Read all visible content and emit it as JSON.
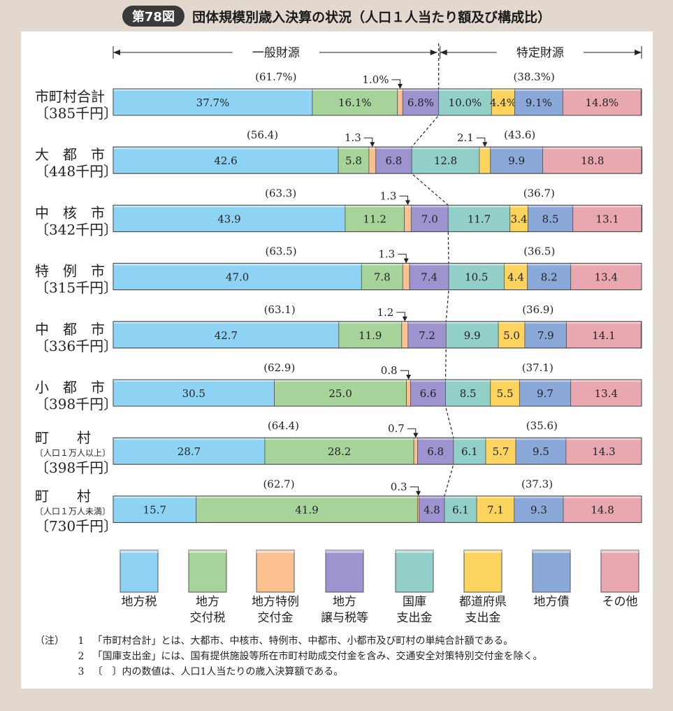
{
  "header": {
    "badge": "第78図",
    "title": "団体規模別歳入決算の状況（人口１人当たり額及び構成比）"
  },
  "chart_data": {
    "type": "bar",
    "orientation": "horizontal",
    "stacked": true,
    "groups": [
      {
        "label": "一般財源",
        "categories": [
          "地方税",
          "地方交付税",
          "地方特例交付金",
          "地方譲与税等"
        ]
      },
      {
        "label": "特定財源",
        "categories": [
          "国庫支出金",
          "都道府県支出金",
          "地方債",
          "その他"
        ]
      }
    ],
    "series": [
      {
        "name": "地方税",
        "legend_lines": [
          "地方税"
        ],
        "color": "#8fd3f4"
      },
      {
        "name": "地方交付税",
        "legend_lines": [
          "地方",
          "交付税"
        ],
        "color": "#a6d39a"
      },
      {
        "name": "地方特例交付金",
        "legend_lines": [
          "地方特例",
          "交付金"
        ],
        "color": "#fbc08f"
      },
      {
        "name": "地方譲与税等",
        "legend_lines": [
          "地方",
          "譲与税等"
        ],
        "color": "#9c93cf"
      },
      {
        "name": "国庫支出金",
        "legend_lines": [
          "国庫",
          "支出金"
        ],
        "color": "#92cfc9"
      },
      {
        "name": "都道府県支出金",
        "legend_lines": [
          "都道府県",
          "支出金"
        ],
        "color": "#fcd35c"
      },
      {
        "name": "地方債",
        "legend_lines": [
          "地方債"
        ],
        "color": "#8aa8d8"
      },
      {
        "name": "その他",
        "legend_lines": [
          "その他"
        ],
        "color": "#e9a8b0"
      }
    ],
    "rows": [
      {
        "label_lines": [
          "市町村合計",
          "〔385千円〕"
        ],
        "values": [
          37.7,
          16.1,
          1.0,
          6.8,
          10.0,
          4.4,
          9.1,
          14.8
        ],
        "value_labels": [
          "37.7%",
          "16.1%",
          "",
          "6.8%",
          "10.0%",
          "4.4%",
          "9.1%",
          "14.8%"
        ],
        "general_total": "(61.7%)",
        "specific_total": "(38.3%)",
        "callouts": [
          {
            "series": 2,
            "text": "1.0%"
          }
        ]
      },
      {
        "label_lines": [
          "大　都　市",
          "〔448千円〕"
        ],
        "values": [
          42.6,
          5.8,
          1.3,
          6.8,
          12.8,
          2.1,
          9.9,
          18.8
        ],
        "value_labels": [
          "42.6",
          "5.8",
          "",
          "6.8",
          "12.8",
          "",
          "9.9",
          "18.8"
        ],
        "general_total": "(56.4)",
        "specific_total": "(43.6)",
        "callouts": [
          {
            "series": 2,
            "text": "1.3"
          },
          {
            "series": 5,
            "text": "2.1"
          }
        ]
      },
      {
        "label_lines": [
          "中　核　市",
          "〔342千円〕"
        ],
        "values": [
          43.9,
          11.2,
          1.3,
          7.0,
          11.7,
          3.4,
          8.5,
          13.1
        ],
        "value_labels": [
          "43.9",
          "11.2",
          "",
          "7.0",
          "11.7",
          "3.4",
          "8.5",
          "13.1"
        ],
        "general_total": "(63.3)",
        "specific_total": "(36.7)",
        "callouts": [
          {
            "series": 2,
            "text": "1.3"
          }
        ]
      },
      {
        "label_lines": [
          "特　例　市",
          "〔315千円〕"
        ],
        "values": [
          47.0,
          7.8,
          1.3,
          7.4,
          10.5,
          4.4,
          8.2,
          13.4
        ],
        "value_labels": [
          "47.0",
          "7.8",
          "",
          "7.4",
          "10.5",
          "4.4",
          "8.2",
          "13.4"
        ],
        "general_total": "(63.5)",
        "specific_total": "(36.5)",
        "callouts": [
          {
            "series": 2,
            "text": "1.3"
          }
        ]
      },
      {
        "label_lines": [
          "中　都　市",
          "〔336千円〕"
        ],
        "values": [
          42.7,
          11.9,
          1.2,
          7.2,
          9.9,
          5.0,
          7.9,
          14.1
        ],
        "value_labels": [
          "42.7",
          "11.9",
          "",
          "7.2",
          "9.9",
          "5.0",
          "7.9",
          "14.1"
        ],
        "general_total": "(63.1)",
        "specific_total": "(36.9)",
        "callouts": [
          {
            "series": 2,
            "text": "1.2"
          }
        ]
      },
      {
        "label_lines": [
          "小　都　市",
          "〔398千円〕"
        ],
        "values": [
          30.5,
          25.0,
          0.8,
          6.6,
          8.5,
          5.5,
          9.7,
          13.4
        ],
        "value_labels": [
          "30.5",
          "25.0",
          "",
          "6.6",
          "8.5",
          "5.5",
          "9.7",
          "13.4"
        ],
        "general_total": "(62.9)",
        "specific_total": "(37.1)",
        "callouts": [
          {
            "series": 2,
            "text": "0.8"
          }
        ]
      },
      {
        "label_lines": [
          "町　　村",
          "〔人口１万人以上〕",
          "〔398千円〕"
        ],
        "values": [
          28.7,
          28.2,
          0.7,
          6.8,
          6.1,
          5.7,
          9.5,
          14.3
        ],
        "value_labels": [
          "28.7",
          "28.2",
          "",
          "6.8",
          "6.1",
          "5.7",
          "9.5",
          "14.3"
        ],
        "general_total": "(64.4)",
        "specific_total": "(35.6)",
        "callouts": [
          {
            "series": 2,
            "text": "0.7"
          }
        ]
      },
      {
        "label_lines": [
          "町　　村",
          "〔人口１万人未満〕",
          "〔730千円〕"
        ],
        "values": [
          15.7,
          41.9,
          0.3,
          4.8,
          6.1,
          7.1,
          9.3,
          14.8
        ],
        "value_labels": [
          "15.7",
          "41.9",
          "",
          "4.8",
          "6.1",
          "7.1",
          "9.3",
          "14.8"
        ],
        "general_total": "(62.7)",
        "specific_total": "(37.3)",
        "callouts": [
          {
            "series": 2,
            "text": "0.3"
          }
        ]
      }
    ],
    "xlim": [
      0,
      100
    ],
    "grid": false,
    "legend_position": "bottom"
  },
  "notes": [
    {
      "lead": "（注）",
      "num": "1",
      "text": "「市町村合計」とは、大都市、中核市、特例市、中都市、小都市及び町村の単純合計額である。"
    },
    {
      "lead": "",
      "num": "2",
      "text": "「国庫支出金」には、国有提供施設等所在市町村助成交付金を含み、交通安全対策特別交付金を除く。"
    },
    {
      "lead": "",
      "num": "3",
      "text": "〔　〕内の数値は、人口1人当たりの歳入決算額である。"
    }
  ]
}
